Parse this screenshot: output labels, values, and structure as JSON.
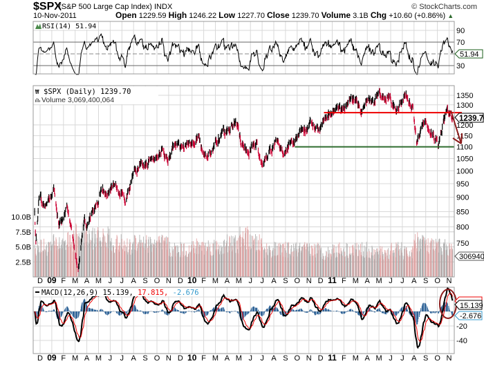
{
  "header": {
    "symbol": "$SPX",
    "name": "(S&P 500 Large Cap Index) INDX",
    "copyright": "© StockCharts.com",
    "date": "10-Nov-2011",
    "open_label": "Open",
    "open": "1229.59",
    "high_label": "High",
    "high": "1246.22",
    "low_label": "Low",
    "low": "1227.70",
    "close_label": "Close",
    "close": "1239.70",
    "volume_label": "Volume",
    "volume": "3.1B",
    "chg_label": "Chg",
    "chg": "+10.60 (+0.86%)",
    "up_arrow": "▲"
  },
  "colors": {
    "up": "#000000",
    "down": "#cc0033",
    "volume_up": "#a8a8a8",
    "volume_down": "#e0a0a0",
    "macd_hist": "#336699",
    "resistance": "#ee0000",
    "support": "#2e6b2e",
    "annotation": "#8b1a1a",
    "grid": "#d8d8d8"
  },
  "chart_data": [
    {
      "panel": "rsi",
      "type": "line",
      "legend": "RSI(14) 51.94",
      "ylim": [
        15,
        100
      ],
      "ticks": [
        "90",
        "70",
        "30"
      ],
      "reference_lines": [
        70,
        50,
        30
      ],
      "last_value_tag": "51.94"
    },
    {
      "panel": "price",
      "type": "ohlc",
      "scale": "log",
      "legend": "$SPX (Daily) 1239.70",
      "volume_legend": "Volume 3,069,400,064",
      "ylim": [
        700,
        1400
      ],
      "ticks": [
        "1350",
        "1300",
        "1200",
        "1150",
        "1100",
        "1050",
        "1000",
        "950",
        "900",
        "850",
        "800",
        "750"
      ],
      "last_value_tag": "1239.70",
      "close_anchors": [
        [
          "2008-11-17",
          850
        ],
        [
          "2008-11-20",
          752
        ],
        [
          "2008-11-28",
          896
        ],
        [
          "2008-12-15",
          870
        ],
        [
          "2008-12-31",
          903
        ],
        [
          "2009-01-06",
          935
        ],
        [
          "2009-01-20",
          805
        ],
        [
          "2009-01-30",
          825
        ],
        [
          "2009-02-09",
          870
        ],
        [
          "2009-02-27",
          735
        ],
        [
          "2009-03-09",
          677
        ],
        [
          "2009-03-26",
          832
        ],
        [
          "2009-03-31",
          798
        ],
        [
          "2009-04-15",
          852
        ],
        [
          "2009-04-30",
          873
        ],
        [
          "2009-05-08",
          929
        ],
        [
          "2009-05-29",
          919
        ],
        [
          "2009-06-12",
          946
        ],
        [
          "2009-06-30",
          919
        ],
        [
          "2009-07-10",
          879
        ],
        [
          "2009-07-31",
          987
        ],
        [
          "2009-08-14",
          1005
        ],
        [
          "2009-08-31",
          1021
        ],
        [
          "2009-09-15",
          1052
        ],
        [
          "2009-09-30",
          1057
        ],
        [
          "2009-10-15",
          1096
        ],
        [
          "2009-10-30",
          1036
        ],
        [
          "2009-11-16",
          1110
        ],
        [
          "2009-11-30",
          1096
        ],
        [
          "2009-12-15",
          1107
        ],
        [
          "2009-12-31",
          1115
        ],
        [
          "2010-01-19",
          1150
        ],
        [
          "2010-01-29",
          1074
        ],
        [
          "2010-02-08",
          1056
        ],
        [
          "2010-02-26",
          1104
        ],
        [
          "2010-03-15",
          1150
        ],
        [
          "2010-03-31",
          1169
        ],
        [
          "2010-04-23",
          1217
        ],
        [
          "2010-04-30",
          1187
        ],
        [
          "2010-05-07",
          1110
        ],
        [
          "2010-05-25",
          1074
        ],
        [
          "2010-06-18",
          1117
        ],
        [
          "2010-06-30",
          1031
        ],
        [
          "2010-07-02",
          1022
        ],
        [
          "2010-07-30",
          1102
        ],
        [
          "2010-08-09",
          1127
        ],
        [
          "2010-08-27",
          1064
        ],
        [
          "2010-09-15",
          1125
        ],
        [
          "2010-09-30",
          1141
        ],
        [
          "2010-10-15",
          1176
        ],
        [
          "2010-10-29",
          1183
        ],
        [
          "2010-11-05",
          1225
        ],
        [
          "2010-11-16",
          1178
        ],
        [
          "2010-11-30",
          1181
        ],
        [
          "2010-12-15",
          1236
        ],
        [
          "2010-12-31",
          1258
        ],
        [
          "2011-01-14",
          1293
        ],
        [
          "2011-01-28",
          1276
        ],
        [
          "2011-02-18",
          1343
        ],
        [
          "2011-02-28",
          1327
        ],
        [
          "2011-03-16",
          1257
        ],
        [
          "2011-03-31",
          1326
        ],
        [
          "2011-04-18",
          1305
        ],
        [
          "2011-04-29",
          1364
        ],
        [
          "2011-05-16",
          1329
        ],
        [
          "2011-05-31",
          1345
        ],
        [
          "2011-06-15",
          1265
        ],
        [
          "2011-06-30",
          1321
        ],
        [
          "2011-07-07",
          1353
        ],
        [
          "2011-07-29",
          1292
        ],
        [
          "2011-08-08",
          1119
        ],
        [
          "2011-08-31",
          1219
        ],
        [
          "2011-09-12",
          1162
        ],
        [
          "2011-09-30",
          1131
        ],
        [
          "2011-10-03",
          1099
        ],
        [
          "2011-10-27",
          1285
        ],
        [
          "2011-10-31",
          1253
        ],
        [
          "2011-11-04",
          1253
        ],
        [
          "2011-11-09",
          1229
        ],
        [
          "2011-11-10",
          1239.7
        ]
      ],
      "horizontal_lines": [
        {
          "level": 1260,
          "from": "2010-12-10",
          "color": "#ee0000"
        },
        {
          "level": 1100,
          "from": "2010-09-25",
          "color": "#2e6b2e"
        }
      ]
    },
    {
      "panel": "volume",
      "type": "bar",
      "unit": "B",
      "ticks": [
        "10.0B",
        "7.5B",
        "5.0B",
        "2.5B"
      ],
      "last_value_tag": "3069400",
      "monthly_avg_billions": [
        5.0,
        5.0,
        5.5,
        6.0,
        7.0,
        6.5,
        6.5,
        5.5,
        5.0,
        6.0,
        5.5,
        5.5,
        4.5,
        4.5,
        5.0,
        5.0,
        5.0,
        5.5,
        6.5,
        5.5,
        4.5,
        4.5,
        4.5,
        4.5,
        4.5,
        4.0,
        4.5,
        4.5,
        4.5,
        4.0,
        4.0,
        4.5,
        4.0,
        6.0,
        5.0,
        5.0,
        4.5
      ]
    },
    {
      "panel": "macd",
      "type": "line",
      "legend_name": "MACD(12,26,9)",
      "legend_macd": "15.139,",
      "legend_signal": " 17.815,",
      "legend_hist": " -2.676",
      "ticks": [
        "-20",
        "-40"
      ],
      "macd_tag": "15.139",
      "hist_tag": "-2.676"
    }
  ],
  "x_axis": {
    "months": [
      "D",
      "09",
      "F",
      "M",
      "A",
      "M",
      "J",
      "J",
      "A",
      "S",
      "O",
      "N",
      "D",
      "10",
      "F",
      "M",
      "A",
      "M",
      "J",
      "J",
      "A",
      "S",
      "O",
      "N",
      "D",
      "11",
      "F",
      "M",
      "A",
      "M",
      "J",
      "J",
      "A",
      "S",
      "O",
      "N"
    ]
  }
}
